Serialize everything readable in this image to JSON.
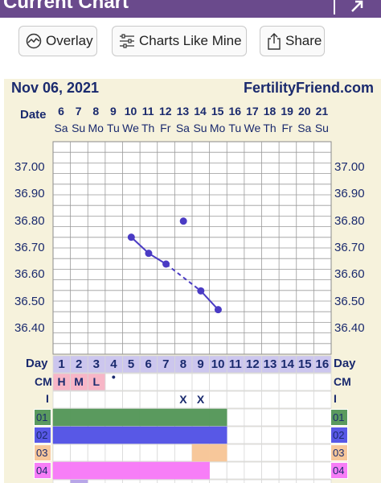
{
  "window": {
    "title": "Current Chart"
  },
  "toolbar": {
    "overlay_label": "Overlay",
    "charts_like_mine_label": "Charts Like Mine",
    "share_label": "Share"
  },
  "chart_header": {
    "date": "Nov 06, 2021",
    "brand": "FertilityFriend.com"
  },
  "labels": {
    "date": "Date",
    "day": "Day",
    "cm": "CM",
    "intercourse": "I"
  },
  "dates": [
    "6",
    "7",
    "8",
    "9",
    "10",
    "11",
    "12",
    "13",
    "14",
    "15",
    "16",
    "17",
    "18",
    "19",
    "20",
    "21"
  ],
  "weekdays": [
    "Sa",
    "Su",
    "Mo",
    "Tu",
    "We",
    "Th",
    "Fr",
    "Sa",
    "Su",
    "Mo",
    "Tu",
    "We",
    "Th",
    "Fr",
    "Sa",
    "Su"
  ],
  "cycle_days": [
    "1",
    "2",
    "3",
    "4",
    "5",
    "6",
    "7",
    "8",
    "9",
    "10",
    "11",
    "12",
    "13",
    "14",
    "15",
    "16"
  ],
  "cm_marks": [
    "H",
    "M",
    "L",
    "•",
    "",
    "",
    "",
    "",
    "",
    "",
    "",
    "",
    "",
    "",
    "",
    ""
  ],
  "intercourse_marks": [
    "",
    "",
    "",
    "",
    "",
    "",
    "",
    "X",
    "X",
    "",
    "",
    "",
    "",
    "",
    "",
    ""
  ],
  "colors": {
    "header_bar": "#6a4a8c",
    "chart_bg": "#f6f2dc",
    "line": "#4a3bc4",
    "cm_fill": "#f7b6c7",
    "row01": "#5a9a5e",
    "row02": "#5858e6",
    "row03": "#f7c79a",
    "row04": "#f77ef7"
  },
  "tracker_rows": [
    {
      "label": "01",
      "days_filled": 10
    },
    {
      "label": "02",
      "days_filled": 10
    },
    {
      "label": "03",
      "days_filled": 10,
      "partial_from": 9
    },
    {
      "label": "04",
      "days_filled": 9
    }
  ],
  "chart_data": {
    "type": "line",
    "title": "",
    "xlabel": "Day",
    "ylabel": "",
    "x": [
      5,
      6,
      7,
      8,
      9,
      10
    ],
    "ylim": [
      36.35,
      37.05
    ],
    "yticks": [
      "37.00",
      "36.90",
      "36.80",
      "36.70",
      "36.60",
      "36.50",
      "36.40"
    ],
    "series": [
      {
        "values": [
          {
            "day": 5,
            "temp": 36.74
          },
          {
            "day": 6,
            "temp": 36.68
          },
          {
            "day": 7,
            "temp": 36.64
          },
          {
            "day": 8,
            "temp": 36.8,
            "excluded": true
          },
          {
            "day": 9,
            "temp": 36.54
          },
          {
            "day": 10,
            "temp": 36.47
          }
        ]
      }
    ],
    "grid": true
  }
}
